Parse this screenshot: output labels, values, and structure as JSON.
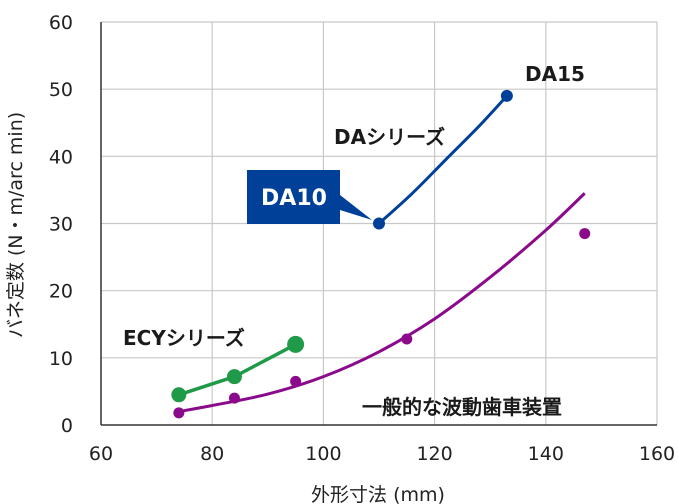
{
  "chart_data": {
    "type": "scatter",
    "title": "",
    "xlabel": "外形寸法 (mm)",
    "ylabel": "バネ定数 (N・m/arc min)",
    "xlim": [
      60,
      160
    ],
    "ylim": [
      0,
      60
    ],
    "xticks": [
      60,
      80,
      100,
      120,
      140,
      160
    ],
    "yticks": [
      0,
      10,
      20,
      30,
      40,
      50,
      60
    ],
    "grid": true,
    "series": [
      {
        "name": "DAシリーズ",
        "color": "#004098",
        "style": "curve-with-end-markers",
        "points": [
          [
            110,
            30
          ],
          [
            133,
            49
          ]
        ],
        "curve": [
          [
            110,
            30
          ],
          [
            116,
            34.5
          ],
          [
            122,
            39.5
          ],
          [
            128,
            44.5
          ],
          [
            133,
            49
          ]
        ]
      },
      {
        "name": "ECYシリーズ",
        "color": "#1f9a48",
        "style": "line-with-markers",
        "points": [
          [
            74,
            4.5
          ],
          [
            84,
            7.2
          ],
          [
            95,
            12
          ]
        ]
      },
      {
        "name": "一般的な波動歯車装置",
        "color": "#8b0a8b",
        "style": "markers-with-trend",
        "points": [
          [
            74,
            1.8
          ],
          [
            84,
            4
          ],
          [
            95,
            6.5
          ],
          [
            115,
            12.8
          ],
          [
            147,
            28.5
          ]
        ],
        "trend": [
          [
            74,
            2
          ],
          [
            80,
            2.9
          ],
          [
            90,
            4.6
          ],
          [
            100,
            7.2
          ],
          [
            110,
            10.9
          ],
          [
            120,
            15.8
          ],
          [
            130,
            22
          ],
          [
            140,
            29
          ],
          [
            147,
            34.5
          ]
        ]
      }
    ],
    "annotations": {
      "da15": "DA15",
      "da_series": "DAシリーズ",
      "da10": "DA10",
      "ecy_series": "ECYシリーズ",
      "general": "一般的な波動歯車装置"
    },
    "callout_color": "#004098",
    "grid_color": "#c8c8c8",
    "axis_color": "#333333"
  }
}
